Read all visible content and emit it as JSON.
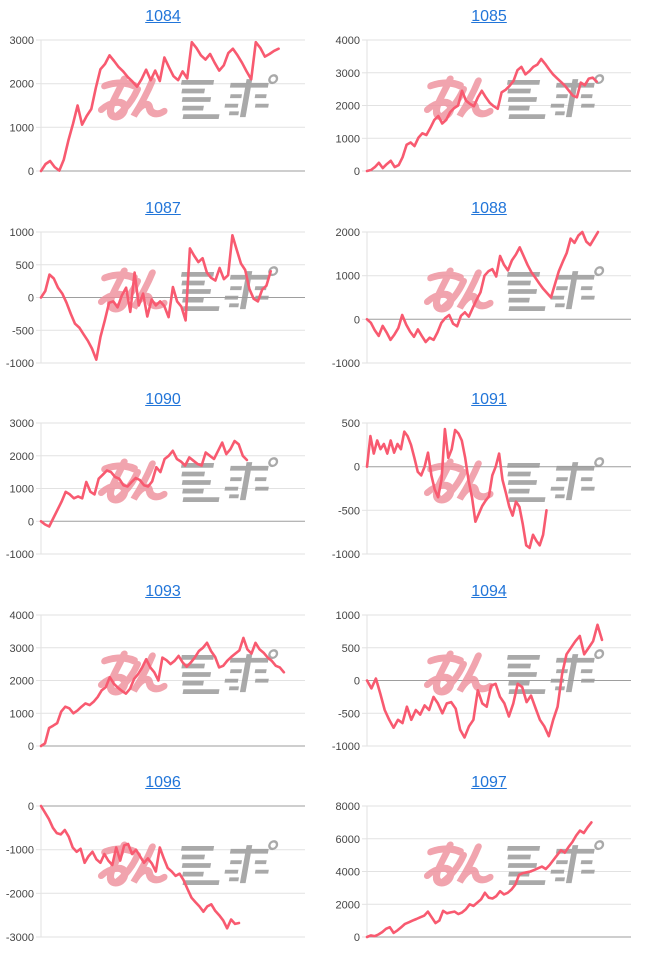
{
  "style": {
    "line_color": "#f85a70",
    "grid_color": "#e2e2e2",
    "zero_line_color": "#9e9e9e",
    "label_color": "#454545",
    "title_color": "#2175d9",
    "watermark_pink": "#ee8e9b",
    "watermark_gray": "#9b9b9b"
  },
  "watermark": {
    "pink_text": "みん",
    "gray_text": "レポ"
  },
  "chart_data": [
    {
      "type": "line",
      "title": "1084",
      "xlabel": "",
      "ylabel": "",
      "ticks": [
        3000,
        2000,
        1000,
        0
      ],
      "ylim": [
        0,
        3000
      ],
      "end_frac": 0.9,
      "grid": "on",
      "values": [
        0,
        160,
        230,
        90,
        10,
        260,
        700,
        1080,
        1500,
        1060,
        1260,
        1420,
        1900,
        2330,
        2450,
        2650,
        2520,
        2380,
        2280,
        2150,
        2050,
        1930,
        2100,
        2320,
        2080,
        2300,
        2060,
        2600,
        2380,
        2170,
        2080,
        2280,
        2120,
        2950,
        2820,
        2650,
        2550,
        2680,
        2480,
        2300,
        2420,
        2700,
        2800,
        2650,
        2480,
        2280,
        2100,
        2950,
        2820,
        2620,
        2680,
        2750,
        2800
      ]
    },
    {
      "type": "line",
      "title": "1085",
      "xlabel": "",
      "ylabel": "",
      "ticks": [
        4000,
        3000,
        2000,
        1000,
        0
      ],
      "ylim": [
        0,
        4000
      ],
      "end_frac": 0.87,
      "grid": "on",
      "values": [
        0,
        30,
        120,
        250,
        90,
        210,
        310,
        120,
        180,
        420,
        800,
        870,
        760,
        1020,
        1150,
        1100,
        1320,
        1560,
        1680,
        1450,
        1560,
        1800,
        1920,
        2000,
        2450,
        2150,
        2050,
        1980,
        2250,
        2450,
        2250,
        2080,
        1980,
        1900,
        2400,
        2480,
        2600,
        2750,
        3080,
        3180,
        2950,
        3050,
        3180,
        3250,
        3420,
        3270,
        3100,
        2950,
        2830,
        2720,
        2600,
        2450,
        2300,
        2250,
        2700,
        2620,
        2820,
        2850,
        2730
      ]
    },
    {
      "type": "line",
      "title": "1087",
      "xlabel": "",
      "ylabel": "",
      "ticks": [
        1000,
        500,
        0,
        -500,
        -1000
      ],
      "ylim": [
        -1000,
        1000
      ],
      "end_frac": 0.87,
      "grid": "on",
      "values": [
        0,
        100,
        350,
        290,
        150,
        60,
        -80,
        -250,
        -400,
        -460,
        -560,
        -660,
        -780,
        -950,
        -600,
        -350,
        -80,
        -60,
        -150,
        30,
        150,
        -220,
        380,
        -120,
        60,
        -290,
        -30,
        -120,
        -60,
        -130,
        -300,
        160,
        -60,
        -140,
        -350,
        750,
        640,
        540,
        600,
        380,
        300,
        260,
        450,
        280,
        340,
        950,
        730,
        520,
        420,
        130,
        -20,
        -60,
        120,
        180,
        400
      ]
    },
    {
      "type": "line",
      "title": "1088",
      "xlabel": "",
      "ylabel": "",
      "ticks": [
        2000,
        1000,
        0,
        -1000
      ],
      "ylim": [
        -1000,
        2000
      ],
      "end_frac": 0.875,
      "grid": "on",
      "values": [
        0,
        -80,
        -250,
        -380,
        -150,
        -300,
        -470,
        -350,
        -200,
        100,
        -120,
        -280,
        -400,
        -230,
        -380,
        -520,
        -420,
        -470,
        -300,
        -80,
        30,
        100,
        -100,
        -160,
        80,
        160,
        60,
        260,
        450,
        620,
        1000,
        1100,
        1150,
        980,
        1450,
        1250,
        1120,
        1350,
        1480,
        1650,
        1450,
        1250,
        1080,
        950,
        820,
        700,
        600,
        500,
        800,
        1100,
        1320,
        1520,
        1850,
        1750,
        1920,
        2000,
        1780,
        1700,
        1850,
        2000
      ]
    },
    {
      "type": "line",
      "title": "1090",
      "xlabel": "",
      "ylabel": "",
      "ticks": [
        3000,
        2000,
        1000,
        0,
        -1000
      ],
      "ylim": [
        -1000,
        3000
      ],
      "end_frac": 0.78,
      "grid": "on",
      "values": [
        0,
        -100,
        -160,
        100,
        350,
        600,
        900,
        820,
        700,
        760,
        700,
        1200,
        900,
        820,
        1300,
        1420,
        1550,
        1500,
        1350,
        1300,
        1100,
        1060,
        1200,
        1320,
        1260,
        1100,
        1060,
        1220,
        1650,
        1500,
        1900,
        2000,
        2150,
        1900,
        1820,
        1700,
        1950,
        1850,
        1750,
        1700,
        2100,
        2000,
        1900,
        2150,
        2400,
        2050,
        2200,
        2450,
        2350,
        2000,
        1870
      ]
    },
    {
      "type": "line",
      "title": "1091",
      "xlabel": "",
      "ylabel": "",
      "ticks": [
        500,
        0,
        -500,
        -1000
      ],
      "ylim": [
        -1000,
        500
      ],
      "end_frac": 0.68,
      "grid": "on",
      "values": [
        0,
        350,
        150,
        300,
        200,
        260,
        150,
        300,
        160,
        260,
        200,
        400,
        350,
        250,
        100,
        -60,
        -100,
        0,
        160,
        -100,
        -260,
        -350,
        -150,
        430,
        100,
        200,
        420,
        380,
        300,
        100,
        -160,
        -350,
        -630,
        -540,
        -450,
        -390,
        -340,
        -100,
        0,
        150,
        -150,
        -300,
        -460,
        -560,
        -400,
        -460,
        -660,
        -900,
        -930,
        -780,
        -850,
        -900,
        -780,
        -500
      ]
    },
    {
      "type": "line",
      "title": "1093",
      "xlabel": "",
      "ylabel": "",
      "ticks": [
        4000,
        3000,
        2000,
        1000,
        0
      ],
      "ylim": [
        0,
        4000
      ],
      "end_frac": 0.92,
      "grid": "on",
      "values": [
        0,
        80,
        550,
        620,
        700,
        1050,
        1200,
        1150,
        1000,
        1080,
        1200,
        1300,
        1250,
        1350,
        1500,
        1700,
        1800,
        2100,
        1900,
        1780,
        1680,
        1600,
        1750,
        2050,
        2200,
        2400,
        2650,
        2400,
        2250,
        2000,
        2700,
        2620,
        2500,
        2600,
        2750,
        2550,
        2420,
        2550,
        2700,
        2900,
        3000,
        3150,
        2900,
        2720,
        2400,
        2450,
        2600,
        2720,
        2820,
        2920,
        3300,
        2950,
        2820,
        3150,
        2950,
        2850,
        2700,
        2600,
        2450,
        2400,
        2250
      ]
    },
    {
      "type": "line",
      "title": "1094",
      "xlabel": "",
      "ylabel": "",
      "ticks": [
        1000,
        500,
        0,
        -500,
        -1000
      ],
      "ylim": [
        -1000,
        1000
      ],
      "end_frac": 0.89,
      "grid": "on",
      "values": [
        0,
        -120,
        30,
        -200,
        -450,
        -600,
        -720,
        -600,
        -650,
        -400,
        -600,
        -450,
        -520,
        -380,
        -450,
        -250,
        -350,
        -500,
        -350,
        -330,
        -430,
        -750,
        -870,
        -700,
        -600,
        -150,
        -350,
        -400,
        -80,
        -50,
        -250,
        -350,
        -550,
        -350,
        -50,
        -100,
        -330,
        -230,
        -420,
        -600,
        -700,
        -850,
        -600,
        -400,
        100,
        400,
        500,
        600,
        680,
        400,
        500,
        600,
        850,
        620
      ]
    },
    {
      "type": "line",
      "title": "1096",
      "xlabel": "",
      "ylabel": "",
      "ticks": [
        0,
        -1000,
        -2000,
        -3000
      ],
      "ylim": [
        -3000,
        0
      ],
      "end_frac": 0.75,
      "grid": "on",
      "values": [
        0,
        -150,
        -300,
        -500,
        -620,
        -650,
        -550,
        -700,
        -950,
        -1050,
        -980,
        -1300,
        -1150,
        -1050,
        -1220,
        -1300,
        -1100,
        -1250,
        -1350,
        -950,
        -1250,
        -900,
        -870,
        -1100,
        -1000,
        -1150,
        -1300,
        -1200,
        -1320,
        -1500,
        -950,
        -1200,
        -1420,
        -1500,
        -1600,
        -1550,
        -1700,
        -1900,
        -2100,
        -2200,
        -2300,
        -2420,
        -2300,
        -2250,
        -2400,
        -2500,
        -2620,
        -2800,
        -2600,
        -2700,
        -2680
      ]
    },
    {
      "type": "line",
      "title": "1097",
      "xlabel": "",
      "ylabel": "",
      "ticks": [
        8000,
        6000,
        4000,
        2000,
        0
      ],
      "ylim": [
        0,
        8000
      ],
      "end_frac": 0.85,
      "grid": "on",
      "values": [
        0,
        100,
        50,
        150,
        300,
        500,
        600,
        250,
        400,
        600,
        800,
        900,
        1000,
        1100,
        1200,
        1300,
        1550,
        1200,
        850,
        1000,
        1600,
        1450,
        1500,
        1550,
        1400,
        1500,
        1700,
        2000,
        1900,
        2100,
        2300,
        2700,
        2400,
        2350,
        2500,
        2800,
        2600,
        2700,
        2900,
        3200,
        3800,
        3900,
        3950,
        4000,
        4100,
        4200,
        4300,
        4150,
        4400,
        4700,
        5000,
        5300,
        5150,
        5500,
        5800,
        6200,
        6500,
        6350,
        6700,
        7000
      ]
    }
  ]
}
